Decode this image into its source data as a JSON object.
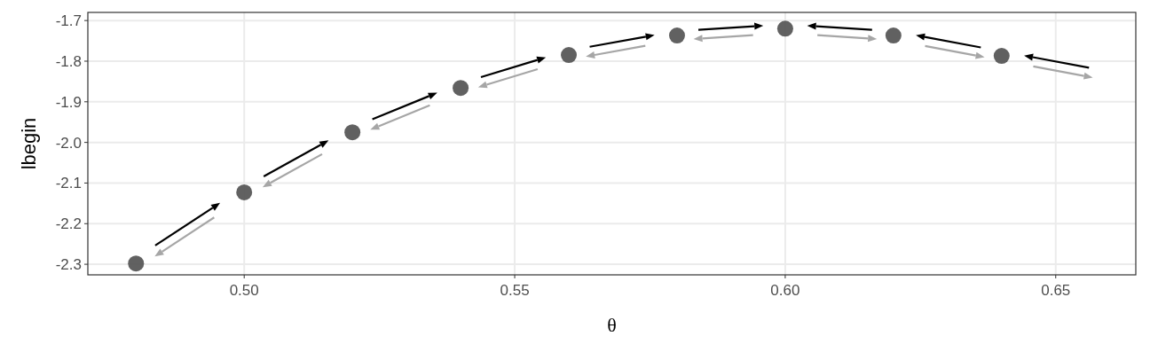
{
  "chart_data": {
    "type": "scatter",
    "xlabel": "θ",
    "ylabel": "lbegin",
    "x": [
      0.48,
      0.5,
      0.52,
      0.54,
      0.56,
      0.58,
      0.6,
      0.62,
      0.64
    ],
    "series": [
      {
        "color": "#595959",
        "values": [
          -2.298,
          -2.123,
          -1.975,
          -1.866,
          -1.785,
          -1.737,
          -1.72,
          -1.737,
          -1.787
        ]
      }
    ],
    "xlim": [
      0.4711,
      0.6648
    ],
    "ylim": [
      -2.326,
      -1.68
    ],
    "xticks": [
      {
        "value": 0.5,
        "label": "0.50"
      },
      {
        "value": 0.55,
        "label": "0.55"
      },
      {
        "value": 0.6,
        "label": "0.60"
      },
      {
        "value": 0.65,
        "label": "0.65"
      }
    ],
    "yticks": [
      -2.3,
      -2.2,
      -2.1,
      {
        "value": -2.0,
        "label": "-2.0"
      },
      -1.9,
      -1.8,
      -1.7
    ],
    "grid": true,
    "marker": "circle"
  }
}
